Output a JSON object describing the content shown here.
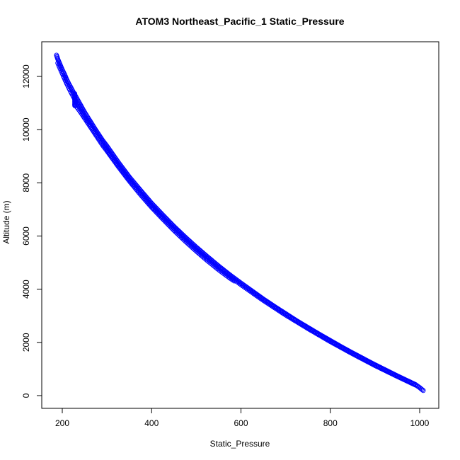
{
  "chart_data": {
    "type": "scatter",
    "title": "ATOM3 Northeast_Pacific_1 Static_Pressure",
    "xlabel": "Static_Pressure",
    "ylabel": "Altitude (m)",
    "xlim": [
      185,
      1010
    ],
    "ylim": [
      0,
      12800
    ],
    "x_ticks": [
      200,
      400,
      600,
      800,
      1000
    ],
    "y_ticks": [
      0,
      2000,
      4000,
      6000,
      8000,
      10000,
      12000
    ],
    "grid": false,
    "legend": "none",
    "marker": "open-circle",
    "point_color": "#0000ff",
    "series": [
      {
        "x": [
          187,
          190,
          195,
          200,
          205,
          210,
          215,
          220,
          225,
          230,
          235,
          240,
          250,
          260,
          275,
          290,
          300,
          325,
          350,
          375,
          400,
          425,
          450,
          475,
          500,
          525,
          550,
          575,
          600,
          625,
          650,
          675,
          700,
          725,
          750,
          775,
          800,
          825,
          850,
          875,
          900,
          925,
          950,
          975,
          990,
          1000,
          1008
        ],
        "y": [
          12800,
          12650,
          12450,
          12250,
          12080,
          11880,
          11710,
          11560,
          11400,
          11250,
          11100,
          10950,
          10650,
          10380,
          9980,
          9600,
          9380,
          8780,
          8220,
          7720,
          7230,
          6790,
          6360,
          5960,
          5580,
          5220,
          4870,
          4540,
          4230,
          3930,
          3630,
          3350,
          3080,
          2810,
          2560,
          2310,
          2070,
          1830,
          1600,
          1380,
          1160,
          950,
          740,
          540,
          420,
          300,
          190
        ]
      },
      {
        "x": [
          228,
          240,
          250,
          260,
          275,
          290,
          300,
          325,
          350,
          375,
          400,
          425,
          450,
          475,
          500,
          525,
          550,
          575,
          585
        ],
        "y": [
          10950,
          10680,
          10430,
          10180,
          9800,
          9420,
          9200,
          8620,
          8070,
          7560,
          7080,
          6640,
          6210,
          5810,
          5430,
          5070,
          4730,
          4420,
          4310
        ]
      },
      {
        "x": [
          228,
          228,
          228,
          228,
          228,
          228,
          228,
          228,
          228,
          228
        ],
        "y": [
          10900,
          10950,
          11000,
          11050,
          11100,
          11150,
          11200,
          11250,
          11300,
          11350
        ]
      },
      {
        "x": [
          190,
          195,
          200,
          210,
          220,
          230,
          240,
          250,
          260,
          275,
          290,
          300,
          325,
          350,
          375,
          400,
          425,
          450,
          475,
          500,
          525,
          550,
          575,
          600,
          650,
          700,
          750,
          800,
          850,
          900,
          950,
          990
        ],
        "y": [
          12500,
          12300,
          12110,
          11730,
          11390,
          11080,
          10800,
          10520,
          10250,
          9870,
          9500,
          9260,
          8680,
          8130,
          7630,
          7140,
          6700,
          6280,
          5880,
          5500,
          5140,
          4800,
          4480,
          4170,
          3580,
          3030,
          2520,
          2030,
          1570,
          1130,
          720,
          400
        ]
      }
    ]
  }
}
